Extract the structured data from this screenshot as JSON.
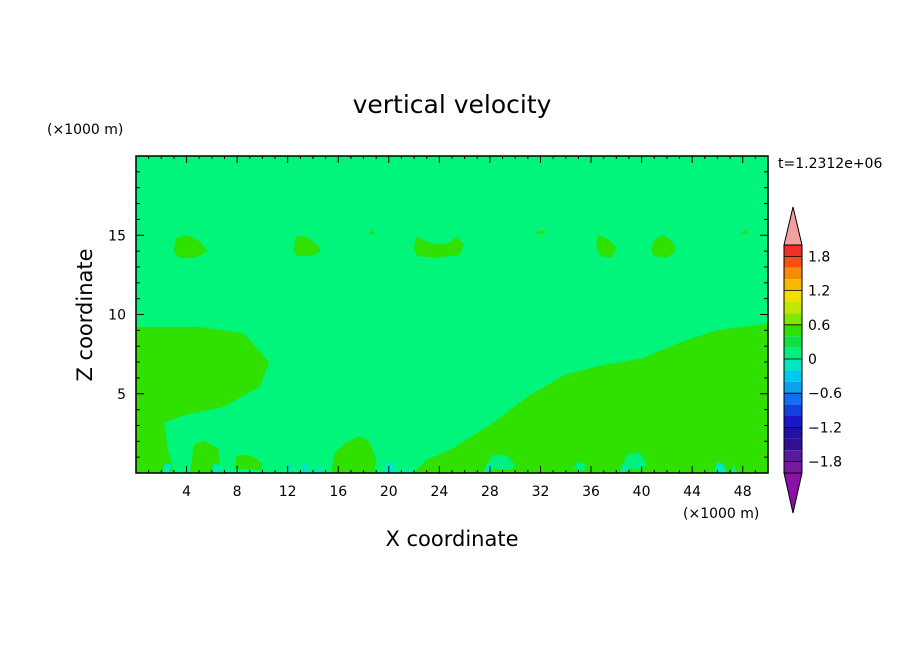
{
  "chart_data": {
    "type": "heatmap",
    "title": "vertical velocity",
    "xlabel": "X coordinate",
    "ylabel": "Z coordinate",
    "x_unit": "(×1000 m)",
    "y_unit": "(×1000 m)",
    "time_label": "t=1.2312e+06",
    "xlim": [
      0,
      50
    ],
    "ylim": [
      0,
      20
    ],
    "x_ticks": [
      4,
      8,
      12,
      16,
      20,
      24,
      28,
      32,
      36,
      40,
      44,
      48
    ],
    "x_tick_labels": [
      "4",
      "8",
      "12",
      "16",
      "20",
      "24",
      "28",
      "32",
      "36",
      "40",
      "44",
      "48"
    ],
    "y_ticks": [
      5,
      10,
      15
    ],
    "y_tick_labels": [
      "5",
      "10",
      "15"
    ],
    "background_level_color": "#00f57a",
    "colorbar": {
      "min": -2.0,
      "max": 2.0,
      "step": 0.2,
      "label_values": [
        1.8,
        1.2,
        0.6,
        0,
        -0.6,
        -1.2,
        -1.8
      ],
      "labels": [
        "1.8",
        "1.2",
        "0.6",
        "0",
        "−0.6",
        "−1.2",
        "−1.8"
      ],
      "colors_top_to_bottom": [
        "#f03028",
        "#f85014",
        "#f88a0a",
        "#f8b800",
        "#f0e000",
        "#c0e800",
        "#80e800",
        "#30e000",
        "#10e040",
        "#00f080",
        "#00e8c0",
        "#00c8f0",
        "#10a0f0",
        "#1070f0",
        "#1040e0",
        "#1818c8",
        "#2010a8",
        "#301090",
        "#5a1aa0",
        "#7818a0"
      ],
      "overflow_high_color": "#f4a0a0",
      "overflow_low_color": "#8c10a8"
    },
    "regions": [
      {
        "level": "0 to 0.2",
        "color": "#30e000",
        "polygon": [
          [
            0,
            9.2
          ],
          [
            5,
            9.2
          ],
          [
            8.5,
            8.8
          ],
          [
            10.5,
            7.0
          ],
          [
            9.8,
            5.5
          ],
          [
            7,
            4.2
          ],
          [
            4,
            3.7
          ],
          [
            2.2,
            3.2
          ],
          [
            2.5,
            1.5
          ],
          [
            3,
            0
          ],
          [
            0,
            0
          ]
        ]
      },
      {
        "level": "0 to 0.2",
        "color": "#30e000",
        "polygon": [
          [
            22,
            0
          ],
          [
            23,
            0.8
          ],
          [
            25,
            1.5
          ],
          [
            28,
            3.0
          ],
          [
            31,
            4.8
          ],
          [
            34,
            6.2
          ],
          [
            37,
            6.8
          ],
          [
            40,
            7.2
          ],
          [
            43,
            8.2
          ],
          [
            46,
            9.0
          ],
          [
            50,
            9.4
          ],
          [
            50,
            0
          ]
        ]
      },
      {
        "level": "0 to 0.2",
        "color": "#30e000",
        "polygon": [
          [
            15.5,
            0
          ],
          [
            15.7,
            1.2
          ],
          [
            16.6,
            1.9
          ],
          [
            17.6,
            2.3
          ],
          [
            18.4,
            2.0
          ],
          [
            19,
            0.8
          ],
          [
            18.8,
            0
          ]
        ]
      },
      {
        "level": "0 to 0.2",
        "color": "#30e000",
        "polygon": [
          [
            4.3,
            0
          ],
          [
            4.6,
            1.8
          ],
          [
            5.4,
            2.0
          ],
          [
            6.5,
            1.5
          ],
          [
            6.6,
            0.5
          ],
          [
            6.2,
            0
          ]
        ]
      },
      {
        "level": "0 to 0.2",
        "color": "#30e000",
        "polygon": [
          [
            7.8,
            0.3
          ],
          [
            8.0,
            1.1
          ],
          [
            9.0,
            1.1
          ],
          [
            10.0,
            0.6
          ],
          [
            9.8,
            0.2
          ]
        ]
      },
      {
        "level": "0 to 0.2",
        "color": "#30e000",
        "polygon": [
          [
            3.0,
            14.0
          ],
          [
            3.2,
            14.8
          ],
          [
            4.1,
            15.0
          ],
          [
            5.0,
            14.6
          ],
          [
            5.6,
            14.0
          ],
          [
            4.7,
            13.6
          ],
          [
            3.4,
            13.6
          ]
        ]
      },
      {
        "level": "0 to 0.2",
        "color": "#30e000",
        "polygon": [
          [
            12.5,
            14.0
          ],
          [
            12.7,
            14.9
          ],
          [
            13.5,
            14.9
          ],
          [
            14.3,
            14.4
          ],
          [
            14.6,
            14.0
          ],
          [
            13.7,
            13.7
          ],
          [
            12.8,
            13.7
          ]
        ]
      },
      {
        "level": "0 to 0.2",
        "color": "#30e000",
        "polygon": [
          [
            22.0,
            14.1
          ],
          [
            22.2,
            14.9
          ],
          [
            22.9,
            14.6
          ],
          [
            23.8,
            14.4
          ],
          [
            24.8,
            14.5
          ],
          [
            25.4,
            14.9
          ],
          [
            25.9,
            14.4
          ],
          [
            25.6,
            13.8
          ],
          [
            23.8,
            13.6
          ],
          [
            22.3,
            13.7
          ]
        ]
      },
      {
        "level": "0 to 0.2",
        "color": "#30e000",
        "polygon": [
          [
            36.4,
            14.3
          ],
          [
            36.6,
            15.0
          ],
          [
            37.4,
            14.7
          ],
          [
            38.0,
            14.2
          ],
          [
            37.6,
            13.6
          ],
          [
            36.8,
            13.7
          ]
        ]
      },
      {
        "level": "0 to 0.2",
        "color": "#30e000",
        "polygon": [
          [
            40.8,
            14.0
          ],
          [
            41.0,
            14.7
          ],
          [
            41.7,
            15.0
          ],
          [
            42.5,
            14.5
          ],
          [
            42.7,
            14.0
          ],
          [
            42.0,
            13.6
          ],
          [
            41.0,
            13.7
          ]
        ]
      },
      {
        "level": "0 to 0.2",
        "color": "#30e000",
        "polygon": [
          [
            18.5,
            15.1
          ],
          [
            18.7,
            15.3
          ],
          [
            18.9,
            15.1
          ]
        ]
      },
      {
        "level": "0 to 0.2",
        "color": "#30e000",
        "polygon": [
          [
            31.7,
            15.2
          ],
          [
            32.3,
            15.3
          ],
          [
            32.3,
            15.1
          ],
          [
            31.7,
            15.1
          ]
        ]
      },
      {
        "level": "0 to 0.2",
        "color": "#30e000",
        "polygon": [
          [
            47.9,
            15.1
          ],
          [
            48.2,
            15.3
          ],
          [
            48.4,
            15.1
          ]
        ]
      },
      {
        "level": "-0.2 to 0",
        "color": "#00f080",
        "polygon": [
          [
            27.8,
            0.3
          ],
          [
            28.1,
            1.1
          ],
          [
            29.3,
            1.1
          ],
          [
            30.0,
            0.5
          ],
          [
            29.6,
            0.2
          ]
        ]
      },
      {
        "level": "-0.2 to 0",
        "color": "#00f080",
        "polygon": [
          [
            38.5,
            0.3
          ],
          [
            38.8,
            1.1
          ],
          [
            39.8,
            1.3
          ],
          [
            40.4,
            0.6
          ],
          [
            40.0,
            0.2
          ]
        ]
      },
      {
        "level": "-0.2 to 0",
        "color": "#00f080",
        "polygon": [
          [
            34.6,
            0.3
          ],
          [
            35.0,
            0.7
          ],
          [
            35.6,
            0.5
          ],
          [
            35.4,
            0.1
          ]
        ]
      },
      {
        "level": "-0.4 to -0.2",
        "color": "#00e8c0",
        "polygon": [
          [
            2.1,
            0
          ],
          [
            2.3,
            0.6
          ],
          [
            2.8,
            0.5
          ],
          [
            2.6,
            0
          ]
        ]
      },
      {
        "level": "-0.4 to -0.2",
        "color": "#00e8c0",
        "polygon": [
          [
            6.0,
            0
          ],
          [
            6.2,
            0.6
          ],
          [
            6.7,
            0.4
          ],
          [
            6.5,
            0
          ]
        ]
      },
      {
        "level": "-0.4 to -0.2",
        "color": "#00e8c0",
        "polygon": [
          [
            11.9,
            0
          ],
          [
            12.1,
            0.6
          ],
          [
            12.5,
            0.3
          ]
        ]
      },
      {
        "level": "-0.4 to -0.2",
        "color": "#00e8c0",
        "polygon": [
          [
            13.0,
            0
          ],
          [
            13.2,
            0.5
          ],
          [
            13.6,
            0.6
          ],
          [
            13.7,
            0
          ]
        ]
      },
      {
        "level": "-0.4 to -0.2",
        "color": "#00e8c0",
        "polygon": [
          [
            14.2,
            0
          ],
          [
            14.4,
            0.5
          ],
          [
            14.8,
            0.2
          ]
        ]
      },
      {
        "level": "-0.4 to -0.2",
        "color": "#00e8c0",
        "polygon": [
          [
            19.6,
            0
          ],
          [
            19.8,
            0.7
          ],
          [
            20.4,
            0.6
          ],
          [
            20.7,
            0
          ]
        ]
      },
      {
        "level": "-0.4 to -0.2",
        "color": "#00e8c0",
        "polygon": [
          [
            21.3,
            0
          ],
          [
            21.5,
            0.4
          ],
          [
            21.8,
            0
          ]
        ]
      },
      {
        "level": "-0.4 to -0.2",
        "color": "#00e8c0",
        "polygon": [
          [
            27.5,
            0
          ],
          [
            27.8,
            0.6
          ],
          [
            28.3,
            0.3
          ]
        ]
      },
      {
        "level": "-0.4 to -0.2",
        "color": "#00e8c0",
        "polygon": [
          [
            38.3,
            0
          ],
          [
            38.5,
            0.5
          ],
          [
            38.9,
            0.2
          ]
        ]
      },
      {
        "level": "-0.4 to -0.2",
        "color": "#00e8c0",
        "polygon": [
          [
            45.8,
            0
          ],
          [
            46.0,
            0.7
          ],
          [
            46.5,
            0.5
          ],
          [
            46.7,
            0
          ]
        ]
      },
      {
        "level": "-0.4 to -0.2",
        "color": "#00e8c0",
        "polygon": [
          [
            47.1,
            0
          ],
          [
            47.3,
            0.4
          ],
          [
            47.6,
            0
          ]
        ]
      }
    ]
  }
}
